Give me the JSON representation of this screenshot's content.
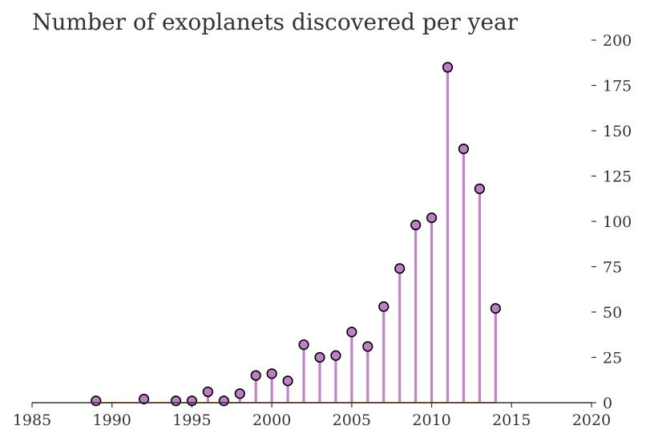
{
  "chart_data": {
    "type": "stem",
    "title": "Number of exoplanets discovered per year",
    "xlabel": "",
    "ylabel": "",
    "xlim": [
      1985,
      2020
    ],
    "ylim": [
      0,
      200
    ],
    "x_ticks": [
      1985,
      1990,
      1995,
      2000,
      2005,
      2010,
      2015,
      2020
    ],
    "y_ticks": [
      0,
      25,
      50,
      75,
      100,
      125,
      150,
      175,
      200
    ],
    "y_axis_side": "right",
    "grid": false,
    "legend": "none",
    "colors": {
      "stem": "#c184c8",
      "marker_fill": "#bf7fc6",
      "marker_edge": "#000000",
      "baseline": "#f0a050",
      "axis": "#333333"
    },
    "series": [
      {
        "x": [
          1989,
          1992,
          1994,
          1995,
          1996,
          1997,
          1998,
          1999,
          2000,
          2001,
          2002,
          2003,
          2004,
          2005,
          2006,
          2007,
          2008,
          2009,
          2010,
          2011,
          2012,
          2013,
          2014
        ],
        "y": [
          1,
          2,
          1,
          1,
          6,
          1,
          5,
          15,
          16,
          12,
          32,
          25,
          26,
          39,
          31,
          53,
          74,
          98,
          102,
          185,
          140,
          118,
          52
        ]
      }
    ]
  }
}
